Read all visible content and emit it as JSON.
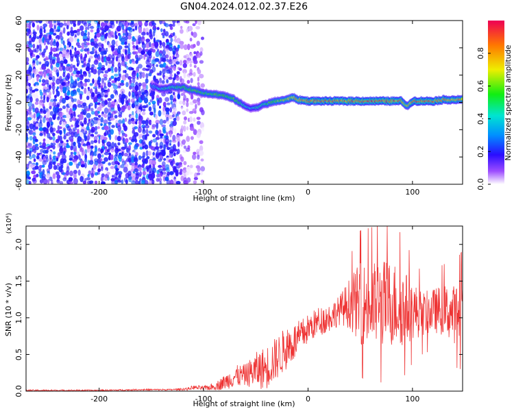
{
  "title": "GN04.2024.012.02.37.E26",
  "colors": {
    "accent": "#ee3333",
    "frame": "#000000"
  },
  "chart_data": [
    {
      "type": "heatmap",
      "xlabel": "Height of straight line (km)",
      "ylabel": "Frequency (Hz)",
      "xlim": [
        -270,
        148
      ],
      "ylim": [
        -60,
        60
      ],
      "xticks": [
        -200,
        -100,
        0,
        100
      ],
      "xtick_labels": [
        "-200",
        "-100",
        "0",
        "100"
      ],
      "yticks": [
        -60,
        -40,
        -20,
        0,
        20,
        40,
        60
      ],
      "ytick_labels": [
        "-60",
        "-40",
        "-20",
        "0",
        "20",
        "40",
        "60"
      ],
      "colorbar": {
        "label": "Normalized spectral amplitude",
        "range": [
          0,
          1
        ],
        "ticks": [
          0.0,
          0.2,
          0.4,
          0.6,
          0.8
        ],
        "tick_labels": [
          "0.0",
          "0.2",
          "0.4",
          "0.6",
          "0.8"
        ]
      },
      "noise_region_x": [
        -270,
        -100
      ],
      "ridge": {
        "x": [
          -150,
          -140,
          -130,
          -120,
          -110,
          -100,
          -90,
          -80,
          -70,
          -60,
          -55,
          -50,
          -40,
          -30,
          -20,
          -15,
          -10,
          0,
          20,
          40,
          60,
          80,
          90,
          95,
          100,
          110,
          120,
          130,
          148
        ],
        "frequency": [
          12,
          10,
          11,
          11,
          9,
          7,
          6,
          5,
          2,
          -3,
          -4,
          -4,
          -1,
          1,
          2,
          4,
          2,
          1,
          1,
          1,
          1,
          1,
          1,
          -3,
          1,
          1,
          1,
          2,
          2
        ],
        "amplitude": [
          0.35,
          0.45,
          0.5,
          0.55,
          0.6,
          0.55,
          0.6,
          0.55,
          0.6,
          0.45,
          0.4,
          0.45,
          0.55,
          0.65,
          0.7,
          0.75,
          0.8,
          0.9,
          0.9,
          0.95,
          0.95,
          0.95,
          0.9,
          0.7,
          0.9,
          0.95,
          0.9,
          0.85,
          0.8
        ]
      }
    },
    {
      "type": "line",
      "xlabel": "Height of straight line (km)",
      "ylabel": "SNR (10 * v/v)",
      "y_multiplier": "(x10⁴)",
      "xlim": [
        -270,
        148
      ],
      "ylim": [
        0,
        2.25
      ],
      "xticks": [
        -200,
        -100,
        0,
        100
      ],
      "xtick_labels": [
        "-200",
        "-100",
        "0",
        "100"
      ],
      "yticks": [
        0.0,
        0.5,
        1.0,
        1.5,
        2.0
      ],
      "ytick_labels": [
        "0.0",
        "0.5",
        "1.0",
        "1.5",
        "2.0"
      ],
      "series": [
        {
          "color": "#ee3333",
          "x": [
            -270,
            -240,
            -200,
            -160,
            -130,
            -115,
            -110,
            -100,
            -90,
            -80,
            -70,
            -60,
            -50,
            -40,
            -30,
            -20,
            -10,
            0,
            10,
            20,
            30,
            40,
            50,
            60,
            70,
            80,
            90,
            100,
            110,
            120,
            130,
            140,
            148
          ],
          "mean": [
            0.01,
            0.01,
            0.01,
            0.02,
            0.02,
            0.03,
            0.05,
            0.04,
            0.06,
            0.12,
            0.2,
            0.22,
            0.28,
            0.32,
            0.45,
            0.6,
            0.7,
            0.85,
            0.95,
            1.0,
            1.1,
            1.2,
            1.2,
            1.15,
            1.2,
            1.2,
            1.15,
            1.1,
            1.05,
            1.1,
            1.1,
            1.05,
            1.1
          ],
          "spread": [
            0.01,
            0.01,
            0.01,
            0.01,
            0.01,
            0.02,
            0.03,
            0.03,
            0.05,
            0.1,
            0.15,
            0.15,
            0.25,
            0.3,
            0.3,
            0.3,
            0.25,
            0.2,
            0.2,
            0.2,
            0.2,
            0.35,
            0.55,
            0.6,
            0.6,
            0.6,
            0.55,
            0.4,
            0.3,
            0.3,
            0.35,
            0.4,
            0.45
          ]
        }
      ]
    }
  ]
}
